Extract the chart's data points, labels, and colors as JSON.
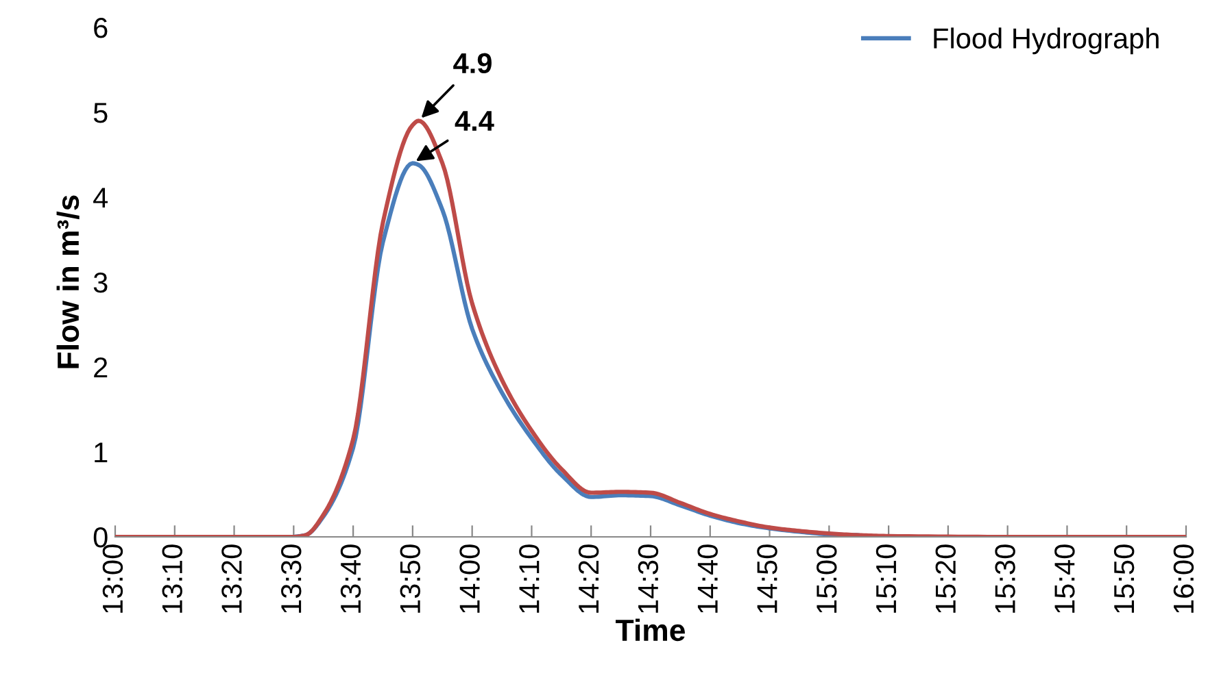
{
  "chart_data": {
    "type": "line",
    "xlabel": "Time",
    "ylabel": "Flow in m³/s",
    "xlim": [
      13.0,
      16.0
    ],
    "ylim": [
      0,
      6
    ],
    "yticks": [
      0,
      1,
      2,
      3,
      4,
      5,
      6
    ],
    "xticks": [
      {
        "value": 13.0,
        "label": "13:00"
      },
      {
        "value": 13.1667,
        "label": "13:10"
      },
      {
        "value": 13.3333,
        "label": "13:20"
      },
      {
        "value": 13.5,
        "label": "13:30"
      },
      {
        "value": 13.6667,
        "label": "13:40"
      },
      {
        "value": 13.8333,
        "label": "13:50"
      },
      {
        "value": 14.0,
        "label": "14:00"
      },
      {
        "value": 14.1667,
        "label": "14:10"
      },
      {
        "value": 14.3333,
        "label": "14:20"
      },
      {
        "value": 14.5,
        "label": "14:30"
      },
      {
        "value": 14.6667,
        "label": "14:40"
      },
      {
        "value": 14.8333,
        "label": "14:50"
      },
      {
        "value": 15.0,
        "label": "15:00"
      },
      {
        "value": 15.1667,
        "label": "15:10"
      },
      {
        "value": 15.3333,
        "label": "15:20"
      },
      {
        "value": 15.5,
        "label": "15:30"
      },
      {
        "value": 15.6667,
        "label": "15:40"
      },
      {
        "value": 15.8333,
        "label": "15:50"
      },
      {
        "value": 16.0,
        "label": "16:00"
      }
    ],
    "x": [
      13.0,
      13.25,
      13.5,
      13.5333,
      13.5833,
      13.6667,
      13.75,
      13.8333,
      13.85,
      13.9167,
      14.0,
      14.0833,
      14.1667,
      14.25,
      14.3333,
      14.4167,
      14.5,
      14.5833,
      14.6667,
      14.75,
      14.8333,
      14.9167,
      15.0,
      15.0833,
      15.1667,
      15.5,
      16.0
    ],
    "series": [
      {
        "name": "Flood Hydrograph",
        "color": "#4a7ebb",
        "values": [
          null,
          null,
          0,
          0.02,
          0.24,
          1.05,
          3.47,
          4.4,
          4.38,
          3.85,
          2.45,
          1.7,
          1.16,
          0.73,
          0.47,
          0.49,
          0.48,
          0.37,
          0.25,
          0.16,
          0.1,
          0.06,
          0.03,
          0.02,
          null,
          null,
          null
        ]
      },
      {
        "color": "#be4b48",
        "values": [
          0,
          0,
          0,
          0.02,
          0.26,
          1.15,
          3.7,
          4.85,
          4.9,
          4.4,
          2.75,
          1.85,
          1.25,
          0.8,
          0.52,
          0.53,
          0.52,
          0.4,
          0.27,
          0.18,
          0.11,
          0.07,
          0.04,
          0.02,
          0.01,
          0,
          0
        ]
      }
    ],
    "annotations": [
      {
        "text": "4.9",
        "x": 13.85,
        "y": 4.9
      },
      {
        "text": "4.4",
        "x": 13.8333,
        "y": 4.4
      }
    ],
    "legend": "top right",
    "grid": false,
    "marker": "none",
    "line_style": "solid"
  }
}
